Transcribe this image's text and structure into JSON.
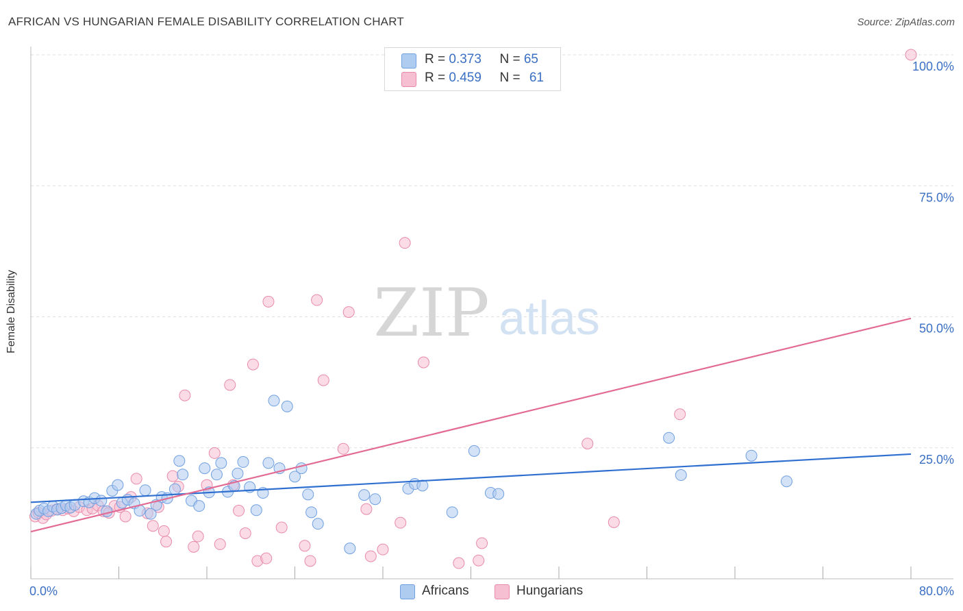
{
  "title": "AFRICAN VS HUNGARIAN FEMALE DISABILITY CORRELATION CHART",
  "source": "Source: ZipAtlas.com",
  "watermark": {
    "zip": "ZIP",
    "atlas": "atlas"
  },
  "legend": {
    "africans": {
      "r_label": "R = ",
      "r_value": "0.373",
      "n_label": "N = ",
      "n_value": "65"
    },
    "hungarians": {
      "r_label": "R = ",
      "r_value": "0.459",
      "n_label": "N = ",
      "n_value": "61"
    }
  },
  "colors": {
    "africans_fill": "#aecbf0",
    "africans_stroke": "#6f9fe0",
    "africans_line": "#2f6fd0",
    "hungarians_fill": "#f7bfd2",
    "hungarians_stroke": "#e88aab",
    "hungarians_line": "#e36a93",
    "tick_label": "#3a6fc4",
    "grid": "#dddddd"
  },
  "chart_data": {
    "type": "scatter",
    "title": "AFRICAN VS HUNGARIAN FEMALE DISABILITY CORRELATION CHART",
    "xlabel": "",
    "ylabel": "Female Disability",
    "xlim": [
      0,
      80
    ],
    "ylim": [
      0,
      100
    ],
    "x_tick_labels": [
      "0.0%",
      "80.0%"
    ],
    "y_ticks": [
      25,
      50,
      75,
      100
    ],
    "y_tick_labels": [
      "25.0%",
      "50.0%",
      "75.0%",
      "100.0%"
    ],
    "grid": true,
    "legend_position": "top-center",
    "series": [
      {
        "name": "Africans",
        "trend": {
          "x": [
            0,
            80
          ],
          "y": [
            14.6,
            23.8
          ]
        },
        "points": [
          [
            0.5,
            12.4
          ],
          [
            0.8,
            13.0
          ],
          [
            1.2,
            13.4
          ],
          [
            1.6,
            12.9
          ],
          [
            2.0,
            13.8
          ],
          [
            2.4,
            13.2
          ],
          [
            2.8,
            13.5
          ],
          [
            3.2,
            14.0
          ],
          [
            3.6,
            13.6
          ],
          [
            4.0,
            14.1
          ],
          [
            4.8,
            14.8
          ],
          [
            5.3,
            14.6
          ],
          [
            5.8,
            15.4
          ],
          [
            6.4,
            14.9
          ],
          [
            6.9,
            12.9
          ],
          [
            7.4,
            16.8
          ],
          [
            7.9,
            17.9
          ],
          [
            8.3,
            14.5
          ],
          [
            8.8,
            15.1
          ],
          [
            9.4,
            14.4
          ],
          [
            9.9,
            13.0
          ],
          [
            10.4,
            16.9
          ],
          [
            10.9,
            12.4
          ],
          [
            11.4,
            14.1
          ],
          [
            11.9,
            15.6
          ],
          [
            12.4,
            15.4
          ],
          [
            13.1,
            17.1
          ],
          [
            13.5,
            22.5
          ],
          [
            13.8,
            19.9
          ],
          [
            14.6,
            14.9
          ],
          [
            15.3,
            13.9
          ],
          [
            15.8,
            21.1
          ],
          [
            16.2,
            16.5
          ],
          [
            16.9,
            19.9
          ],
          [
            17.3,
            22.1
          ],
          [
            17.9,
            16.6
          ],
          [
            18.5,
            17.7
          ],
          [
            18.8,
            20.1
          ],
          [
            19.3,
            22.3
          ],
          [
            19.9,
            17.5
          ],
          [
            20.5,
            13.1
          ],
          [
            21.1,
            16.4
          ],
          [
            21.6,
            22.1
          ],
          [
            22.1,
            34.0
          ],
          [
            22.6,
            21.1
          ],
          [
            23.3,
            32.9
          ],
          [
            24.0,
            19.5
          ],
          [
            24.6,
            21.1
          ],
          [
            25.2,
            16.1
          ],
          [
            25.5,
            12.7
          ],
          [
            26.1,
            10.5
          ],
          [
            29.0,
            5.8
          ],
          [
            30.3,
            16.0
          ],
          [
            31.3,
            15.2
          ],
          [
            34.3,
            17.2
          ],
          [
            34.9,
            18.1
          ],
          [
            35.6,
            17.8
          ],
          [
            38.3,
            12.7
          ],
          [
            40.3,
            24.4
          ],
          [
            41.8,
            16.4
          ],
          [
            42.5,
            16.2
          ],
          [
            58.0,
            26.9
          ],
          [
            59.1,
            19.8
          ],
          [
            65.5,
            23.5
          ],
          [
            68.7,
            18.6
          ]
        ]
      },
      {
        "name": "Hungarians",
        "trend": {
          "x": [
            0,
            80
          ],
          "y": [
            9.0,
            49.7
          ]
        },
        "points": [
          [
            0.4,
            11.9
          ],
          [
            0.7,
            12.6
          ],
          [
            1.1,
            11.6
          ],
          [
            1.4,
            12.3
          ],
          [
            1.9,
            13.0
          ],
          [
            2.4,
            13.3
          ],
          [
            2.9,
            13.1
          ],
          [
            3.4,
            13.4
          ],
          [
            3.9,
            12.9
          ],
          [
            4.4,
            13.7
          ],
          [
            5.1,
            13.1
          ],
          [
            5.6,
            13.4
          ],
          [
            6.1,
            14.0
          ],
          [
            6.6,
            12.9
          ],
          [
            7.1,
            12.6
          ],
          [
            7.6,
            13.9
          ],
          [
            8.1,
            13.7
          ],
          [
            8.6,
            11.9
          ],
          [
            9.1,
            15.6
          ],
          [
            9.6,
            19.1
          ],
          [
            10.6,
            12.5
          ],
          [
            11.1,
            10.1
          ],
          [
            11.6,
            13.7
          ],
          [
            12.1,
            9.1
          ],
          [
            12.3,
            7.1
          ],
          [
            12.9,
            19.6
          ],
          [
            13.4,
            17.6
          ],
          [
            14.0,
            35.0
          ],
          [
            14.8,
            6.1
          ],
          [
            15.2,
            8.1
          ],
          [
            16.0,
            17.9
          ],
          [
            16.7,
            24.0
          ],
          [
            17.2,
            6.6
          ],
          [
            18.1,
            37.0
          ],
          [
            18.4,
            17.9
          ],
          [
            18.9,
            13.0
          ],
          [
            19.5,
            8.7
          ],
          [
            20.2,
            40.9
          ],
          [
            20.6,
            3.4
          ],
          [
            21.4,
            3.9
          ],
          [
            21.6,
            52.9
          ],
          [
            22.8,
            9.8
          ],
          [
            24.9,
            6.3
          ],
          [
            25.4,
            3.4
          ],
          [
            26.0,
            53.2
          ],
          [
            26.6,
            37.9
          ],
          [
            28.4,
            24.8
          ],
          [
            28.9,
            50.9
          ],
          [
            30.5,
            13.3
          ],
          [
            30.9,
            4.3
          ],
          [
            32.0,
            5.6
          ],
          [
            33.6,
            10.7
          ],
          [
            34.0,
            64.1
          ],
          [
            35.7,
            41.3
          ],
          [
            38.9,
            3.0
          ],
          [
            40.7,
            3.5
          ],
          [
            41.0,
            6.8
          ],
          [
            50.6,
            25.8
          ],
          [
            53.0,
            10.8
          ],
          [
            59.0,
            31.4
          ],
          [
            80.0,
            100.0
          ]
        ]
      }
    ]
  }
}
